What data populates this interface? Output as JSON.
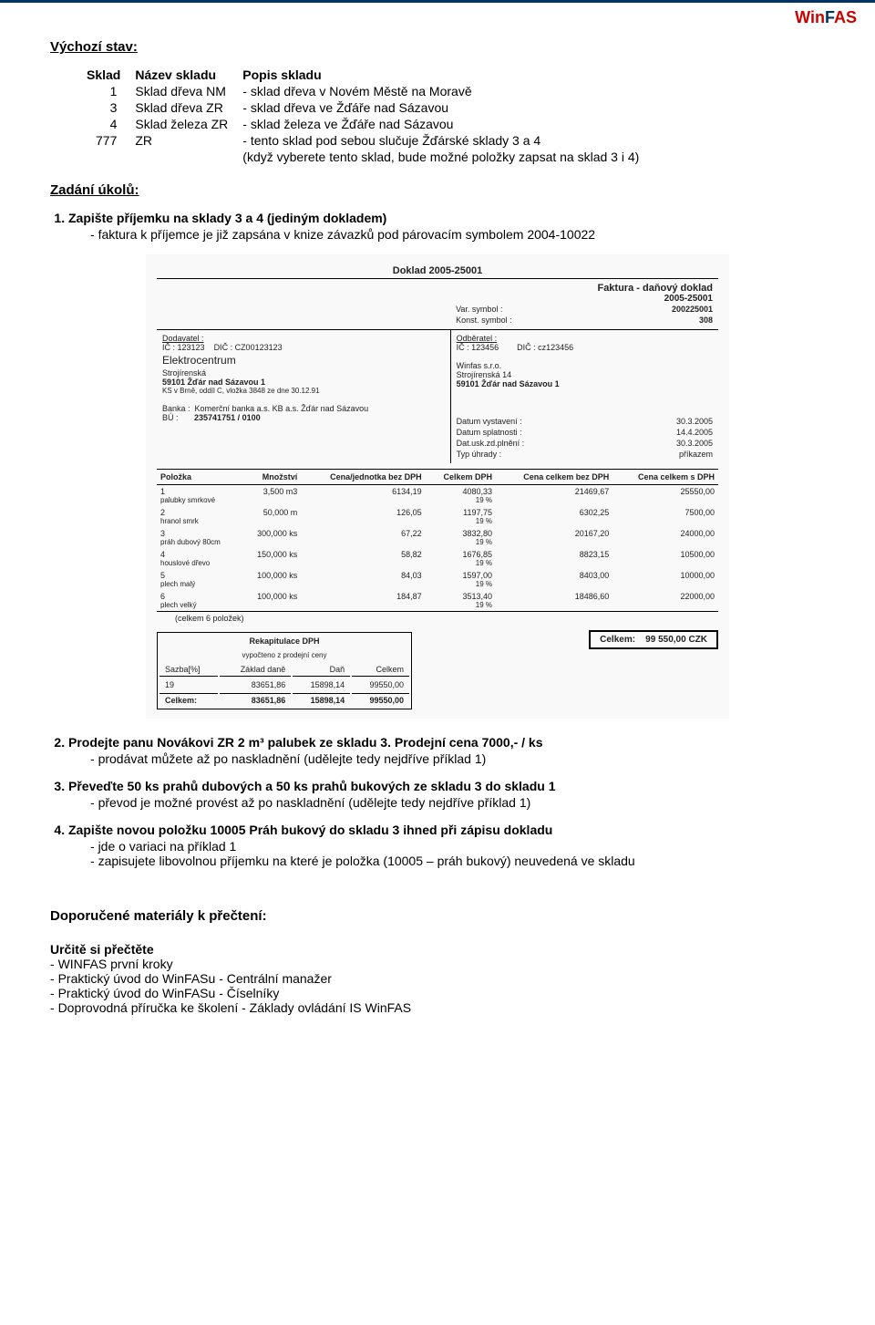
{
  "brand": {
    "part1": "Win",
    "part2": "F",
    "part3": "AS"
  },
  "section1_title": "Výchozí stav:",
  "sklad_table": {
    "headers": [
      "Sklad",
      "Název skladu",
      "Popis skladu"
    ],
    "rows": [
      [
        "1",
        "Sklad dřeva NM",
        "- sklad dřeva v Novém Městě na Moravě"
      ],
      [
        "3",
        "Sklad dřeva ZR",
        "- sklad dřeva ve Žďáře nad Sázavou"
      ],
      [
        "4",
        "Sklad železa ZR",
        "- sklad železa ve Žďáře nad Sázavou"
      ],
      [
        "777",
        "ZR",
        "- tento sklad pod sebou slučuje Žďárské sklady 3 a 4"
      ],
      [
        "",
        "",
        "  (když vyberete tento sklad, bude možné položky zapsat na sklad 3 i 4)"
      ]
    ]
  },
  "section2_title": "Zadání úkolů:",
  "task1": {
    "title": "Zapište příjemku na sklady 3 a 4 (jediným dokladem)",
    "bullets": [
      "faktura k příjemce je již zapsána v knize závazků pod párovacím symbolem 2004-10022"
    ]
  },
  "invoice": {
    "doc_header": "Doklad   2005-25001",
    "title": "Faktura - daňový doklad",
    "number": "2005-25001",
    "var_label": "Var. symbol :",
    "var_value": "200225001",
    "konst_label": "Konst. symbol :",
    "konst_value": "308",
    "supplier_label": "Dodavatel :",
    "supplier_ic": "IČ :   123123",
    "supplier_dic": "DIČ :  CZ00123123",
    "supplier_name": "Elektrocentrum",
    "supplier_addr1": "Strojírenská",
    "supplier_addr2": "59101     Žďár nad Sázavou 1",
    "supplier_ks": "KS v Brně, oddíl C, vložka 3848 ze dne 30.12.91",
    "supplier_bank_label": "Banka :",
    "supplier_bank": "Komerční banka a.s. KB a.s. Žďár nad Sázavou",
    "supplier_bu_label": "BÚ :",
    "supplier_bu": "235741751 / 0100",
    "recipient_label": "Odběratel :",
    "recipient_ic": "IČ :   123456",
    "recipient_dic": "DIČ :  cz123456",
    "recipient_name": "Winfas s.r.o.",
    "recipient_addr1": "Strojírenská 14",
    "recipient_addr2": "59101     Žďár nad Sázavou 1",
    "dates": [
      {
        "l": "Datum vystavení :",
        "v": "30.3.2005"
      },
      {
        "l": "Datum splatnosti :",
        "v": "14.4.2005"
      },
      {
        "l": "Dat.usk.zd.plnění :",
        "v": "30.3.2005"
      },
      {
        "l": "Typ úhrady :",
        "v": "příkazem"
      }
    ],
    "item_headers": [
      "Položka",
      "Množství",
      "Cena/jednotka bez DPH",
      "Celkem DPH",
      "Cena celkem bez DPH",
      "Cena celkem s DPH"
    ],
    "items": [
      {
        "n": "1",
        "d": "palubky smrkové",
        "q": "3,500 m3",
        "u": "6134,19",
        "dph": "4080,33",
        "dphp": "19 %",
        "bez": "21469,67",
        "s": "25550,00"
      },
      {
        "n": "2",
        "d": "hranol smrk",
        "q": "50,000 m",
        "u": "126,05",
        "dph": "1197,75",
        "dphp": "19 %",
        "bez": "6302,25",
        "s": "7500,00"
      },
      {
        "n": "3",
        "d": "práh dubový 80cm",
        "q": "300,000 ks",
        "u": "67,22",
        "dph": "3832,80",
        "dphp": "19 %",
        "bez": "20167,20",
        "s": "24000,00"
      },
      {
        "n": "4",
        "d": "houslové dřevo",
        "q": "150,000 ks",
        "u": "58,82",
        "dph": "1676,85",
        "dphp": "19 %",
        "bez": "8823,15",
        "s": "10500,00"
      },
      {
        "n": "5",
        "d": "plech malý",
        "q": "100,000 ks",
        "u": "84,03",
        "dph": "1597,00",
        "dphp": "19 %",
        "bez": "8403,00",
        "s": "10000,00"
      },
      {
        "n": "6",
        "d": "plech velký",
        "q": "100,000 ks",
        "u": "184,87",
        "dph": "3513,40",
        "dphp": "19 %",
        "bez": "18486,60",
        "s": "22000,00"
      }
    ],
    "items_footer": "(celkem 6 položek)",
    "tax_title": "Rekapitulace DPH",
    "tax_sub": "vypočteno z prodejní ceny",
    "tax_headers": [
      "Sazba[%]",
      "Základ daně",
      "Daň",
      "Celkem"
    ],
    "tax_row": [
      "19",
      "83651,86",
      "15898,14",
      "99550,00"
    ],
    "tax_total_label": "Celkem:",
    "tax_total": [
      "83651,86",
      "15898,14",
      "99550,00"
    ],
    "total_label": "Celkem:",
    "total_value": "99 550,00 CZK"
  },
  "task2": {
    "title": "Prodejte panu Novákovi ZR 2 m³ palubek ze skladu 3. Prodejní cena 7000,- / ks",
    "bullets": [
      "prodávat můžete až po naskladnění (udělejte tedy nejdříve příklad 1)"
    ]
  },
  "task3": {
    "title": "Převeďte 50 ks prahů dubových a 50 ks prahů bukových ze skladu 3 do skladu 1",
    "bullets": [
      "převod je možné provést až po naskladnění (udělejte tedy nejdříve příklad 1)"
    ]
  },
  "task4": {
    "title": "Zapište novou položku 10005 Práh bukový do skladu 3 ihned při zápisu dokladu",
    "bullets": [
      "jde o variaci na příklad 1",
      "zapisujete libovolnou příjemku na které je položka (10005 – práh bukový) neuvedená ve skladu"
    ]
  },
  "section3_title": "Doporučené materiály k přečtení:",
  "read_title": "Určitě si přečtěte",
  "read_items": [
    "WINFAS první kroky",
    "Praktický úvod do WinFASu - Centrální manažer",
    "Praktický úvod do WinFASu - Číselníky",
    "Doprovodná příručka ke školení - Základy ovládání IS WinFAS"
  ]
}
